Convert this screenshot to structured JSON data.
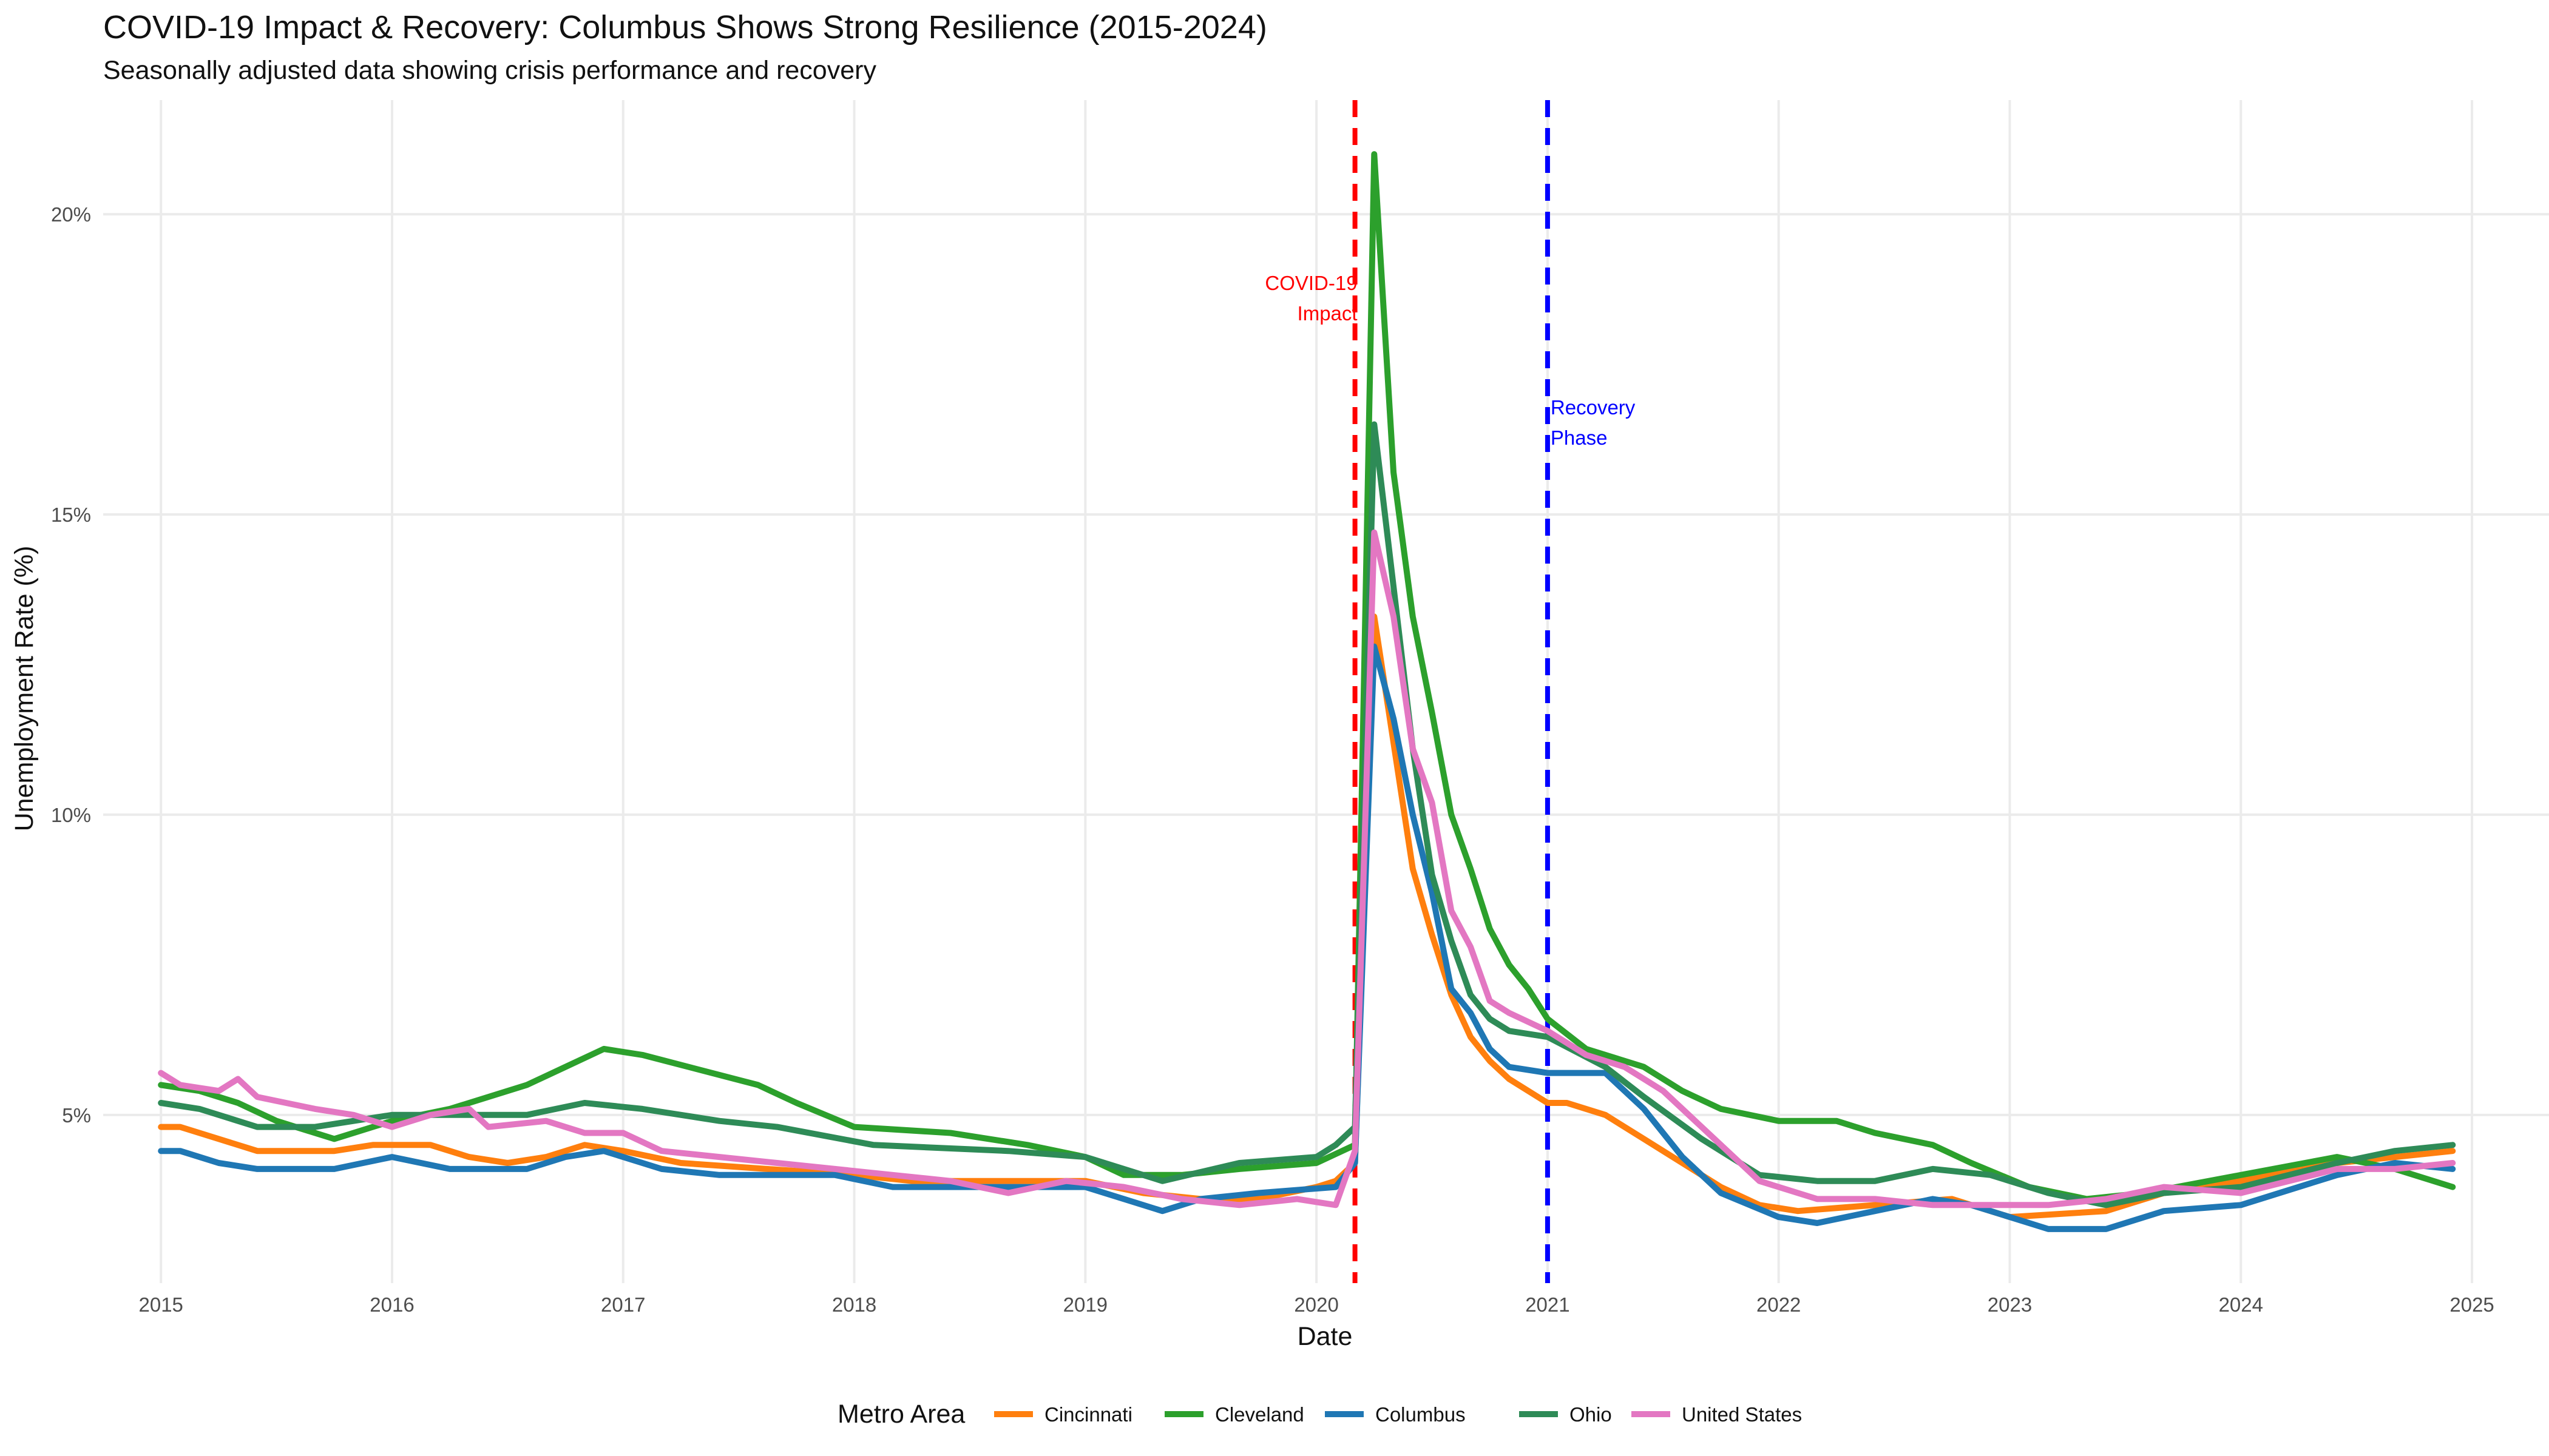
{
  "chart_data": {
    "type": "line",
    "title": "COVID-19 Impact & Recovery: Columbus Shows Strong Resilience (2015-2024)",
    "subtitle": "Seasonally adjusted data showing crisis performance and recovery",
    "xlabel": "Date",
    "ylabel": "Unemployment Rate (%)",
    "x_ticks": [
      "2015",
      "2016",
      "2017",
      "2018",
      "2019",
      "2020",
      "2021",
      "2022",
      "2023",
      "2024",
      "2025"
    ],
    "y_ticks": [
      "5%",
      "10%",
      "15%",
      "20%"
    ],
    "xlim": [
      "2014-10",
      "2025-05"
    ],
    "ylim": [
      2.2,
      21.9
    ],
    "grid": true,
    "legend_position": "bottom",
    "legend_title": "Metro Area",
    "annotations": [
      {
        "label_lines": [
          "COVID-19",
          "Impact"
        ],
        "date": "2020-03",
        "color": "#ff0000"
      },
      {
        "label_lines": [
          "Recovery",
          "Phase"
        ],
        "date": "2021-01",
        "color": "#0000ff"
      }
    ],
    "series": [
      {
        "name": "Cincinnati",
        "color": "#ff7f0e",
        "points": [
          [
            "2015-01",
            4.8
          ],
          [
            "2015-02",
            4.8
          ],
          [
            "2015-04",
            4.6
          ],
          [
            "2015-06",
            4.4
          ],
          [
            "2015-10",
            4.4
          ],
          [
            "2015-12",
            4.5
          ],
          [
            "2016-03",
            4.5
          ],
          [
            "2016-05",
            4.3
          ],
          [
            "2016-07",
            4.2
          ],
          [
            "2016-09",
            4.3
          ],
          [
            "2016-11",
            4.5
          ],
          [
            "2017-01",
            4.4
          ],
          [
            "2017-04",
            4.2
          ],
          [
            "2018-01",
            4.0
          ],
          [
            "2018-04",
            3.9
          ],
          [
            "2018-10",
            3.9
          ],
          [
            "2019-01",
            3.9
          ],
          [
            "2019-04",
            3.7
          ],
          [
            "2019-07",
            3.6
          ],
          [
            "2019-10",
            3.6
          ],
          [
            "2020-01",
            3.8
          ],
          [
            "2020-02",
            3.9
          ],
          [
            "2020-03",
            4.2
          ],
          [
            "2020-04",
            13.3
          ],
          [
            "2020-05",
            11.2
          ],
          [
            "2020-06",
            9.1
          ],
          [
            "2020-07",
            8.0
          ],
          [
            "2020-08",
            7.0
          ],
          [
            "2020-09",
            6.3
          ],
          [
            "2020-10",
            5.9
          ],
          [
            "2020-11",
            5.6
          ],
          [
            "2021-01",
            5.2
          ],
          [
            "2021-02",
            5.2
          ],
          [
            "2021-04",
            5.0
          ],
          [
            "2021-06",
            4.6
          ],
          [
            "2021-08",
            4.2
          ],
          [
            "2021-10",
            3.8
          ],
          [
            "2021-12",
            3.5
          ],
          [
            "2022-02",
            3.4
          ],
          [
            "2022-06",
            3.5
          ],
          [
            "2022-10",
            3.6
          ],
          [
            "2023-01",
            3.3
          ],
          [
            "2023-06",
            3.4
          ],
          [
            "2023-09",
            3.7
          ],
          [
            "2024-01",
            3.9
          ],
          [
            "2024-06",
            4.2
          ],
          [
            "2024-09",
            4.3
          ],
          [
            "2024-12",
            4.4
          ]
        ]
      },
      {
        "name": "Cleveland",
        "color": "#2ca02c",
        "points": [
          [
            "2015-01",
            5.5
          ],
          [
            "2015-03",
            5.4
          ],
          [
            "2015-05",
            5.2
          ],
          [
            "2015-07",
            4.9
          ],
          [
            "2015-10",
            4.6
          ],
          [
            "2016-01",
            4.9
          ],
          [
            "2016-04",
            5.1
          ],
          [
            "2016-08",
            5.5
          ],
          [
            "2016-10",
            5.8
          ],
          [
            "2016-12",
            6.1
          ],
          [
            "2017-02",
            6.0
          ],
          [
            "2017-08",
            5.5
          ],
          [
            "2017-10",
            5.2
          ],
          [
            "2018-01",
            4.8
          ],
          [
            "2018-06",
            4.7
          ],
          [
            "2018-10",
            4.5
          ],
          [
            "2019-01",
            4.3
          ],
          [
            "2019-03",
            4.0
          ],
          [
            "2019-06",
            4.0
          ],
          [
            "2019-09",
            4.1
          ],
          [
            "2020-01",
            4.2
          ],
          [
            "2020-03",
            4.5
          ],
          [
            "2020-04",
            21.0
          ],
          [
            "2020-05",
            15.7
          ],
          [
            "2020-06",
            13.3
          ],
          [
            "2020-07",
            11.7
          ],
          [
            "2020-08",
            10.0
          ],
          [
            "2020-09",
            9.1
          ],
          [
            "2020-10",
            8.1
          ],
          [
            "2020-11",
            7.5
          ],
          [
            "2020-12",
            7.1
          ],
          [
            "2021-01",
            6.6
          ],
          [
            "2021-03",
            6.1
          ],
          [
            "2021-06",
            5.8
          ],
          [
            "2021-08",
            5.4
          ],
          [
            "2021-10",
            5.1
          ],
          [
            "2022-01",
            4.9
          ],
          [
            "2022-04",
            4.9
          ],
          [
            "2022-06",
            4.7
          ],
          [
            "2022-09",
            4.5
          ],
          [
            "2022-11",
            4.2
          ],
          [
            "2023-02",
            3.8
          ],
          [
            "2023-05",
            3.6
          ],
          [
            "2023-08",
            3.7
          ],
          [
            "2024-01",
            4.0
          ],
          [
            "2024-06",
            4.3
          ],
          [
            "2024-09",
            4.1
          ],
          [
            "2024-12",
            3.8
          ]
        ]
      },
      {
        "name": "Columbus",
        "color": "#1f77b4",
        "points": [
          [
            "2015-01",
            4.4
          ],
          [
            "2015-02",
            4.4
          ],
          [
            "2015-04",
            4.2
          ],
          [
            "2015-06",
            4.1
          ],
          [
            "2015-10",
            4.1
          ],
          [
            "2016-01",
            4.3
          ],
          [
            "2016-04",
            4.1
          ],
          [
            "2016-08",
            4.1
          ],
          [
            "2016-10",
            4.3
          ],
          [
            "2016-12",
            4.4
          ],
          [
            "2017-03",
            4.1
          ],
          [
            "2017-06",
            4.0
          ],
          [
            "2017-12",
            4.0
          ],
          [
            "2018-03",
            3.8
          ],
          [
            "2018-09",
            3.8
          ],
          [
            "2019-01",
            3.8
          ],
          [
            "2019-03",
            3.6
          ],
          [
            "2019-05",
            3.4
          ],
          [
            "2019-07",
            3.6
          ],
          [
            "2019-10",
            3.7
          ],
          [
            "2020-02",
            3.8
          ],
          [
            "2020-03",
            4.2
          ],
          [
            "2020-04",
            12.8
          ],
          [
            "2020-05",
            11.6
          ],
          [
            "2020-06",
            10.0
          ],
          [
            "2020-07",
            8.7
          ],
          [
            "2020-08",
            7.1
          ],
          [
            "2020-09",
            6.7
          ],
          [
            "2020-10",
            6.1
          ],
          [
            "2020-11",
            5.8
          ],
          [
            "2021-01",
            5.7
          ],
          [
            "2021-04",
            5.7
          ],
          [
            "2021-06",
            5.1
          ],
          [
            "2021-08",
            4.3
          ],
          [
            "2021-10",
            3.7
          ],
          [
            "2022-01",
            3.3
          ],
          [
            "2022-03",
            3.2
          ],
          [
            "2022-06",
            3.4
          ],
          [
            "2022-09",
            3.6
          ],
          [
            "2022-11",
            3.5
          ],
          [
            "2023-03",
            3.1
          ],
          [
            "2023-06",
            3.1
          ],
          [
            "2023-09",
            3.4
          ],
          [
            "2024-01",
            3.5
          ],
          [
            "2024-06",
            4.0
          ],
          [
            "2024-09",
            4.2
          ],
          [
            "2024-12",
            4.1
          ]
        ]
      },
      {
        "name": "Ohio",
        "color": "#2e8b57",
        "points": [
          [
            "2015-01",
            5.2
          ],
          [
            "2015-03",
            5.1
          ],
          [
            "2015-06",
            4.8
          ],
          [
            "2015-09",
            4.8
          ],
          [
            "2016-01",
            5.0
          ],
          [
            "2016-04",
            5.0
          ],
          [
            "2016-08",
            5.0
          ],
          [
            "2016-11",
            5.2
          ],
          [
            "2017-02",
            5.1
          ],
          [
            "2017-06",
            4.9
          ],
          [
            "2017-09",
            4.8
          ],
          [
            "2018-02",
            4.5
          ],
          [
            "2018-09",
            4.4
          ],
          [
            "2019-01",
            4.3
          ],
          [
            "2019-05",
            3.9
          ],
          [
            "2019-09",
            4.2
          ],
          [
            "2020-01",
            4.3
          ],
          [
            "2020-02",
            4.5
          ],
          [
            "2020-03",
            4.8
          ],
          [
            "2020-04",
            16.5
          ],
          [
            "2020-05",
            13.8
          ],
          [
            "2020-06",
            11.1
          ],
          [
            "2020-07",
            9.0
          ],
          [
            "2020-08",
            7.9
          ],
          [
            "2020-09",
            7.0
          ],
          [
            "2020-10",
            6.6
          ],
          [
            "2020-11",
            6.4
          ],
          [
            "2021-01",
            6.3
          ],
          [
            "2021-04",
            5.8
          ],
          [
            "2021-06",
            5.3
          ],
          [
            "2021-09",
            4.6
          ],
          [
            "2021-12",
            4.0
          ],
          [
            "2022-03",
            3.9
          ],
          [
            "2022-06",
            3.9
          ],
          [
            "2022-09",
            4.1
          ],
          [
            "2022-12",
            4.0
          ],
          [
            "2023-03",
            3.7
          ],
          [
            "2023-06",
            3.5
          ],
          [
            "2023-09",
            3.7
          ],
          [
            "2024-01",
            3.8
          ],
          [
            "2024-06",
            4.2
          ],
          [
            "2024-09",
            4.4
          ],
          [
            "2024-12",
            4.5
          ]
        ]
      },
      {
        "name": "United States",
        "color": "#e377c2",
        "points": [
          [
            "2015-01",
            5.7
          ],
          [
            "2015-02",
            5.5
          ],
          [
            "2015-04",
            5.4
          ],
          [
            "2015-05",
            5.6
          ],
          [
            "2015-06",
            5.3
          ],
          [
            "2015-09",
            5.1
          ],
          [
            "2015-11",
            5.0
          ],
          [
            "2016-01",
            4.8
          ],
          [
            "2016-03",
            5.0
          ],
          [
            "2016-05",
            5.1
          ],
          [
            "2016-06",
            4.8
          ],
          [
            "2016-09",
            4.9
          ],
          [
            "2016-11",
            4.7
          ],
          [
            "2017-01",
            4.7
          ],
          [
            "2017-03",
            4.4
          ],
          [
            "2017-06",
            4.3
          ],
          [
            "2017-09",
            4.2
          ],
          [
            "2017-12",
            4.1
          ],
          [
            "2018-03",
            4.0
          ],
          [
            "2018-06",
            3.9
          ],
          [
            "2018-09",
            3.7
          ],
          [
            "2018-12",
            3.9
          ],
          [
            "2019-03",
            3.8
          ],
          [
            "2019-06",
            3.6
          ],
          [
            "2019-09",
            3.5
          ],
          [
            "2019-12",
            3.6
          ],
          [
            "2020-02",
            3.5
          ],
          [
            "2020-03",
            4.4
          ],
          [
            "2020-04",
            14.7
          ],
          [
            "2020-05",
            13.3
          ],
          [
            "2020-06",
            11.1
          ],
          [
            "2020-07",
            10.2
          ],
          [
            "2020-08",
            8.4
          ],
          [
            "2020-09",
            7.8
          ],
          [
            "2020-10",
            6.9
          ],
          [
            "2020-11",
            6.7
          ],
          [
            "2021-01",
            6.4
          ],
          [
            "2021-03",
            6.0
          ],
          [
            "2021-05",
            5.8
          ],
          [
            "2021-07",
            5.4
          ],
          [
            "2021-09",
            4.8
          ],
          [
            "2021-12",
            3.9
          ],
          [
            "2022-03",
            3.6
          ],
          [
            "2022-06",
            3.6
          ],
          [
            "2022-09",
            3.5
          ],
          [
            "2022-12",
            3.5
          ],
          [
            "2023-03",
            3.5
          ],
          [
            "2023-06",
            3.6
          ],
          [
            "2023-09",
            3.8
          ],
          [
            "2024-01",
            3.7
          ],
          [
            "2024-06",
            4.1
          ],
          [
            "2024-09",
            4.1
          ],
          [
            "2024-12",
            4.2
          ]
        ]
      }
    ]
  }
}
